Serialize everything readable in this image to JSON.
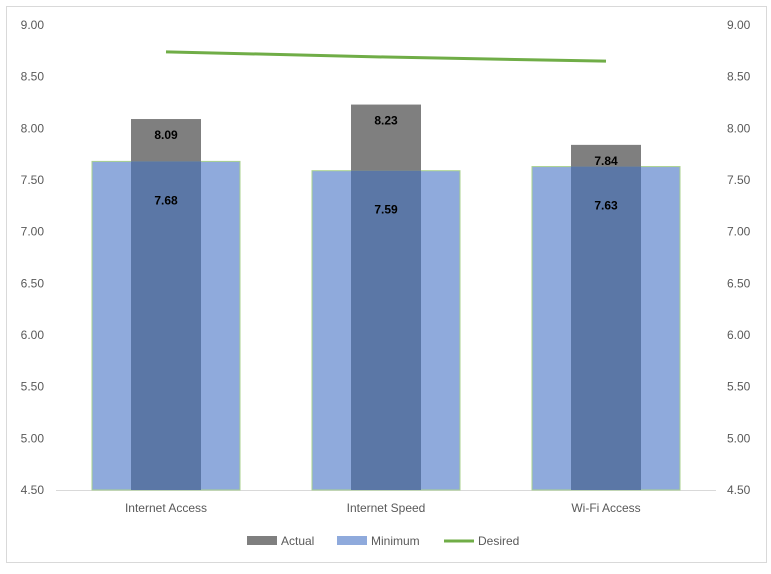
{
  "chart_data": {
    "type": "bar",
    "categories": [
      "Internet Access",
      "Internet Speed",
      "Wi-Fi Access"
    ],
    "series": [
      {
        "name": "Actual",
        "type": "bar",
        "values": [
          8.09,
          8.23,
          7.84
        ],
        "color": "#7f7f7f"
      },
      {
        "name": "Minimum",
        "type": "bar",
        "values": [
          7.68,
          7.59,
          7.63
        ],
        "color": "#8faadc"
      },
      {
        "name": "Desired",
        "type": "line",
        "values": [
          8.74,
          8.69,
          8.65
        ],
        "color": "#70ad47"
      }
    ],
    "overlap_color": "#5b77a6",
    "ylim": [
      4.5,
      9.0
    ],
    "yticks": [
      "4.50",
      "5.00",
      "5.50",
      "6.00",
      "6.50",
      "7.00",
      "7.50",
      "8.00",
      "8.50",
      "9.00"
    ],
    "secondary_yticks": [
      "4.50",
      "5.00",
      "5.50",
      "6.00",
      "6.50",
      "7.00",
      "7.50",
      "8.00",
      "8.50",
      "9.00"
    ],
    "grid": false,
    "legend": "bottom"
  }
}
